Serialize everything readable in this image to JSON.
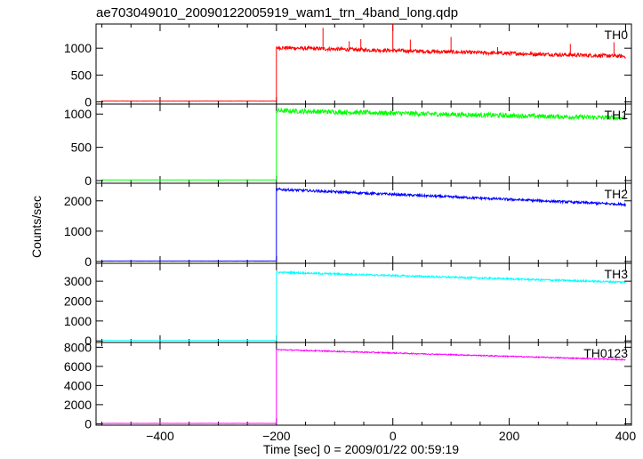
{
  "title": "ae703049010_20090122005919_wam1_trn_4band_long.qdp",
  "chart_data": {
    "type": "line",
    "title": "ae703049010_20090122005919_wam1_trn_4band_long.qdp",
    "xlabel": "Time [sec] 0 = 2009/01/22 00:59:19",
    "ylabel": "Counts/sec",
    "xlim": [
      -510,
      410
    ],
    "x_ticks": [
      -400,
      -200,
      0,
      200,
      400
    ],
    "x_tick_labels": [
      "−400",
      "−200",
      "0",
      "200",
      "400"
    ],
    "grid": false,
    "panels": [
      {
        "name": "TH0",
        "color": "#ff0000",
        "ylim": [
          -40,
          1450
        ],
        "y_ticks": [
          0,
          500,
          1000
        ],
        "y_tick_labels": [
          "0",
          "500",
          "1000"
        ],
        "pre_level": 15,
        "step_time": -200,
        "peak": 1010,
        "end": 850,
        "noise": 35,
        "spikes": [
          [
            -120,
            1380
          ],
          [
            -75,
            1130
          ],
          [
            -55,
            1170
          ],
          [
            0,
            1450
          ],
          [
            30,
            1160
          ],
          [
            100,
            1210
          ],
          [
            180,
            1020
          ],
          [
            305,
            1080
          ],
          [
            380,
            1110
          ]
        ]
      },
      {
        "name": "TH1",
        "color": "#00ff00",
        "ylim": [
          -40,
          1150
        ],
        "y_ticks": [
          0,
          500,
          1000
        ],
        "y_tick_labels": [
          "0",
          "500",
          "1000"
        ],
        "pre_level": 10,
        "step_time": -200,
        "peak": 1050,
        "end": 940,
        "noise": 35,
        "spikes": []
      },
      {
        "name": "TH2",
        "color": "#0000ff",
        "ylim": [
          -60,
          2580
        ],
        "y_ticks": [
          0,
          1000,
          2000
        ],
        "y_tick_labels": [
          "0",
          "1000",
          "2000"
        ],
        "pre_level": 15,
        "step_time": -200,
        "peak": 2380,
        "end": 1880,
        "noise": 40,
        "spikes": []
      },
      {
        "name": "TH3",
        "color": "#00ffff",
        "ylim": [
          -80,
          3900
        ],
        "y_ticks": [
          0,
          1000,
          2000,
          3000
        ],
        "y_tick_labels": [
          "0",
          "1000",
          "2000",
          "3000"
        ],
        "pre_level": 20,
        "step_time": -200,
        "peak": 3450,
        "end": 2950,
        "noise": 45,
        "spikes": []
      },
      {
        "name": "TH0123",
        "color": "#ff00ff",
        "ylim": [
          -150,
          8500
        ],
        "y_ticks": [
          0,
          2000,
          4000,
          6000,
          8000
        ],
        "y_tick_labels": [
          "0",
          "2000",
          "4000",
          "6000",
          "8000"
        ],
        "pre_level": 40,
        "step_time": -200,
        "peak": 7750,
        "end": 6700,
        "noise": 60,
        "spikes": []
      }
    ]
  }
}
